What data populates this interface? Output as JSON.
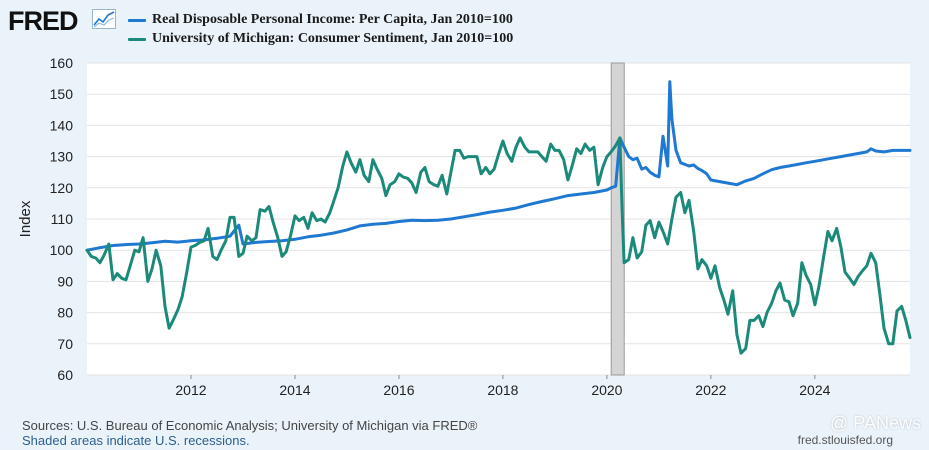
{
  "header": {
    "logo_text": "FRED",
    "logo_icon": "trend-line-icon"
  },
  "legend": [
    {
      "label": "Real Disposable Personal Income: Per Capita, Jan 2010=100",
      "color": "#1f78d1"
    },
    {
      "label": "University of Michigan: Consumer Sentiment, Jan 2010=100",
      "color": "#1b8a7a"
    }
  ],
  "footer": {
    "sources": "Sources: U.S. Bureau of Economic Analysis; University of Michigan via FRED®",
    "recession_note": "Shaded areas indicate U.S. recessions.",
    "url": "fred.stlouisfed.org",
    "watermark": "@ PANews"
  },
  "chart_data": {
    "type": "line",
    "title": "",
    "xlabel": "",
    "ylabel": "Index",
    "xlim": [
      2010.0,
      2025.83
    ],
    "ylim": [
      60,
      160
    ],
    "y_ticks": [
      60,
      70,
      80,
      90,
      100,
      110,
      120,
      130,
      140,
      150,
      160
    ],
    "x_ticks": [
      2012,
      2014,
      2016,
      2018,
      2020,
      2022,
      2024
    ],
    "x_tick_labels": [
      "2012",
      "2014",
      "2016",
      "2018",
      "2020",
      "2022",
      "2024"
    ],
    "grid": "horizontal",
    "legend_position": "top-left",
    "recessions": [
      [
        2020.083,
        2020.333
      ]
    ],
    "series": [
      {
        "name": "Real Disposable Personal Income: Per Capita, Jan 2010=100",
        "color": "#1f78d1",
        "points": [
          [
            2010.0,
            100
          ],
          [
            2010.25,
            100.8
          ],
          [
            2010.5,
            101.5
          ],
          [
            2010.75,
            101.8
          ],
          [
            2011.0,
            102
          ],
          [
            2011.25,
            102.4
          ],
          [
            2011.5,
            102.9
          ],
          [
            2011.75,
            102.6
          ],
          [
            2012.0,
            103
          ],
          [
            2012.25,
            103.3
          ],
          [
            2012.5,
            103.8
          ],
          [
            2012.75,
            104.5
          ],
          [
            2012.92,
            108
          ],
          [
            2013.0,
            102
          ],
          [
            2013.25,
            102.5
          ],
          [
            2013.5,
            102.8
          ],
          [
            2013.75,
            103
          ],
          [
            2014.0,
            103.5
          ],
          [
            2014.25,
            104.3
          ],
          [
            2014.5,
            104.8
          ],
          [
            2014.75,
            105.5
          ],
          [
            2015.0,
            106.5
          ],
          [
            2015.25,
            107.8
          ],
          [
            2015.5,
            108.3
          ],
          [
            2015.75,
            108.6
          ],
          [
            2016.0,
            109.2
          ],
          [
            2016.25,
            109.6
          ],
          [
            2016.5,
            109.5
          ],
          [
            2016.75,
            109.6
          ],
          [
            2017.0,
            110
          ],
          [
            2017.25,
            110.7
          ],
          [
            2017.5,
            111.4
          ],
          [
            2017.75,
            112.2
          ],
          [
            2018.0,
            112.8
          ],
          [
            2018.25,
            113.5
          ],
          [
            2018.5,
            114.6
          ],
          [
            2018.75,
            115.6
          ],
          [
            2019.0,
            116.5
          ],
          [
            2019.25,
            117.5
          ],
          [
            2019.5,
            118
          ],
          [
            2019.75,
            118.5
          ],
          [
            2020.0,
            119.3
          ],
          [
            2020.08,
            120
          ],
          [
            2020.17,
            120.5
          ],
          [
            2020.25,
            136
          ],
          [
            2020.33,
            133
          ],
          [
            2020.42,
            130
          ],
          [
            2020.5,
            129
          ],
          [
            2020.58,
            129.5
          ],
          [
            2020.67,
            126
          ],
          [
            2020.75,
            126.5
          ],
          [
            2020.83,
            125
          ],
          [
            2020.92,
            124
          ],
          [
            2021.0,
            123.5
          ],
          [
            2021.08,
            136.5
          ],
          [
            2021.17,
            127
          ],
          [
            2021.21,
            154
          ],
          [
            2021.25,
            142
          ],
          [
            2021.33,
            132
          ],
          [
            2021.42,
            128
          ],
          [
            2021.5,
            127.5
          ],
          [
            2021.58,
            127
          ],
          [
            2021.67,
            127.3
          ],
          [
            2021.75,
            126.2
          ],
          [
            2021.83,
            125.5
          ],
          [
            2021.92,
            124.5
          ],
          [
            2022.0,
            122.5
          ],
          [
            2022.17,
            122
          ],
          [
            2022.33,
            121.5
          ],
          [
            2022.5,
            121
          ],
          [
            2022.67,
            122.2
          ],
          [
            2022.83,
            123
          ],
          [
            2023.0,
            124.5
          ],
          [
            2023.17,
            125.8
          ],
          [
            2023.33,
            126.5
          ],
          [
            2023.5,
            127
          ],
          [
            2023.67,
            127.5
          ],
          [
            2023.83,
            128
          ],
          [
            2024.0,
            128.5
          ],
          [
            2024.17,
            129
          ],
          [
            2024.33,
            129.5
          ],
          [
            2024.5,
            130
          ],
          [
            2024.67,
            130.5
          ],
          [
            2024.83,
            131
          ],
          [
            2025.0,
            131.5
          ],
          [
            2025.08,
            132.5
          ],
          [
            2025.17,
            131.8
          ],
          [
            2025.33,
            131.5
          ],
          [
            2025.5,
            132
          ],
          [
            2025.67,
            132
          ],
          [
            2025.83,
            132
          ]
        ]
      },
      {
        "name": "University of Michigan: Consumer Sentiment, Jan 2010=100",
        "color": "#1b8a7a",
        "points": [
          [
            2010.0,
            100
          ],
          [
            2010.08,
            98
          ],
          [
            2010.17,
            97.5
          ],
          [
            2010.25,
            96
          ],
          [
            2010.33,
            98.5
          ],
          [
            2010.42,
            102
          ],
          [
            2010.5,
            90.5
          ],
          [
            2010.58,
            92.5
          ],
          [
            2010.67,
            91
          ],
          [
            2010.75,
            90.5
          ],
          [
            2010.83,
            95
          ],
          [
            2010.92,
            100
          ],
          [
            2011.0,
            99.5
          ],
          [
            2011.08,
            104
          ],
          [
            2011.17,
            90
          ],
          [
            2011.25,
            94
          ],
          [
            2011.33,
            100
          ],
          [
            2011.42,
            95
          ],
          [
            2011.5,
            82
          ],
          [
            2011.58,
            75
          ],
          [
            2011.67,
            78
          ],
          [
            2011.75,
            81
          ],
          [
            2011.83,
            85
          ],
          [
            2011.92,
            93
          ],
          [
            2012.0,
            101
          ],
          [
            2012.08,
            101.5
          ],
          [
            2012.17,
            102.5
          ],
          [
            2012.25,
            103
          ],
          [
            2012.33,
            107
          ],
          [
            2012.42,
            98
          ],
          [
            2012.5,
            97
          ],
          [
            2012.58,
            100
          ],
          [
            2012.67,
            103
          ],
          [
            2012.75,
            110.5
          ],
          [
            2012.83,
            110.5
          ],
          [
            2012.92,
            98
          ],
          [
            2013.0,
            99
          ],
          [
            2013.08,
            104.5
          ],
          [
            2013.17,
            103
          ],
          [
            2013.25,
            104
          ],
          [
            2013.33,
            113
          ],
          [
            2013.42,
            112.5
          ],
          [
            2013.5,
            114
          ],
          [
            2013.58,
            109
          ],
          [
            2013.67,
            104
          ],
          [
            2013.75,
            98
          ],
          [
            2013.83,
            99.5
          ],
          [
            2013.92,
            105
          ],
          [
            2014.0,
            111
          ],
          [
            2014.08,
            109.5
          ],
          [
            2014.17,
            110.5
          ],
          [
            2014.25,
            107
          ],
          [
            2014.33,
            112
          ],
          [
            2014.42,
            109.5
          ],
          [
            2014.5,
            110
          ],
          [
            2014.58,
            109
          ],
          [
            2014.67,
            112
          ],
          [
            2014.75,
            116
          ],
          [
            2014.83,
            120
          ],
          [
            2014.92,
            127
          ],
          [
            2015.0,
            131.5
          ],
          [
            2015.08,
            128
          ],
          [
            2015.17,
            125
          ],
          [
            2015.25,
            129
          ],
          [
            2015.33,
            124
          ],
          [
            2015.42,
            122
          ],
          [
            2015.5,
            129
          ],
          [
            2015.58,
            126
          ],
          [
            2015.67,
            123
          ],
          [
            2015.75,
            117.5
          ],
          [
            2015.83,
            121
          ],
          [
            2015.92,
            122
          ],
          [
            2016.0,
            124.5
          ],
          [
            2016.08,
            123.5
          ],
          [
            2016.17,
            123
          ],
          [
            2016.25,
            121.5
          ],
          [
            2016.33,
            118.5
          ],
          [
            2016.42,
            125
          ],
          [
            2016.5,
            126.5
          ],
          [
            2016.58,
            122
          ],
          [
            2016.67,
            121
          ],
          [
            2016.75,
            120.5
          ],
          [
            2016.83,
            124
          ],
          [
            2016.92,
            118
          ],
          [
            2017.0,
            125
          ],
          [
            2017.08,
            132
          ],
          [
            2017.17,
            132
          ],
          [
            2017.25,
            129.5
          ],
          [
            2017.33,
            130
          ],
          [
            2017.42,
            130
          ],
          [
            2017.5,
            130
          ],
          [
            2017.58,
            124.5
          ],
          [
            2017.67,
            126.5
          ],
          [
            2017.75,
            124.5
          ],
          [
            2017.83,
            126
          ],
          [
            2017.92,
            131
          ],
          [
            2018.0,
            135
          ],
          [
            2018.08,
            131
          ],
          [
            2018.17,
            128.5
          ],
          [
            2018.25,
            133
          ],
          [
            2018.33,
            136
          ],
          [
            2018.42,
            133
          ],
          [
            2018.5,
            131.5
          ],
          [
            2018.58,
            131.5
          ],
          [
            2018.67,
            131.5
          ],
          [
            2018.75,
            130
          ],
          [
            2018.83,
            128.5
          ],
          [
            2018.92,
            134
          ],
          [
            2019.0,
            132
          ],
          [
            2019.08,
            132
          ],
          [
            2019.17,
            129
          ],
          [
            2019.25,
            122.5
          ],
          [
            2019.33,
            127
          ],
          [
            2019.42,
            132.5
          ],
          [
            2019.5,
            131
          ],
          [
            2019.58,
            134
          ],
          [
            2019.67,
            132
          ],
          [
            2019.75,
            133
          ],
          [
            2019.83,
            121
          ],
          [
            2019.92,
            126.5
          ],
          [
            2020.0,
            130
          ],
          [
            2020.08,
            131.5
          ],
          [
            2020.17,
            133.5
          ],
          [
            2020.25,
            136
          ],
          [
            2020.29,
            114
          ],
          [
            2020.33,
            96
          ],
          [
            2020.42,
            97
          ],
          [
            2020.5,
            104
          ],
          [
            2020.58,
            97.5
          ],
          [
            2020.67,
            99.5
          ],
          [
            2020.75,
            108
          ],
          [
            2020.83,
            109.5
          ],
          [
            2020.92,
            104
          ],
          [
            2021.0,
            109
          ],
          [
            2021.08,
            106
          ],
          [
            2021.17,
            102
          ],
          [
            2021.25,
            110
          ],
          [
            2021.33,
            117
          ],
          [
            2021.42,
            118.5
          ],
          [
            2021.5,
            112
          ],
          [
            2021.58,
            116
          ],
          [
            2021.67,
            106
          ],
          [
            2021.75,
            94
          ],
          [
            2021.83,
            97
          ],
          [
            2021.92,
            95
          ],
          [
            2022.0,
            91
          ],
          [
            2022.08,
            95
          ],
          [
            2022.17,
            88
          ],
          [
            2022.25,
            84
          ],
          [
            2022.33,
            79.5
          ],
          [
            2022.42,
            87
          ],
          [
            2022.5,
            73
          ],
          [
            2022.58,
            67
          ],
          [
            2022.67,
            68.5
          ],
          [
            2022.75,
            77.5
          ],
          [
            2022.83,
            77.5
          ],
          [
            2022.92,
            79
          ],
          [
            2023.0,
            75.5
          ],
          [
            2023.08,
            80
          ],
          [
            2023.17,
            83
          ],
          [
            2023.25,
            87
          ],
          [
            2023.33,
            89.5
          ],
          [
            2023.42,
            84
          ],
          [
            2023.5,
            83.5
          ],
          [
            2023.58,
            79
          ],
          [
            2023.67,
            83
          ],
          [
            2023.75,
            96
          ],
          [
            2023.83,
            92
          ],
          [
            2023.92,
            89
          ],
          [
            2024.0,
            82.5
          ],
          [
            2024.08,
            88.5
          ],
          [
            2024.17,
            98
          ],
          [
            2024.25,
            106
          ],
          [
            2024.33,
            103
          ],
          [
            2024.42,
            107
          ],
          [
            2024.5,
            101
          ],
          [
            2024.58,
            93
          ],
          [
            2024.67,
            91
          ],
          [
            2024.75,
            89
          ],
          [
            2024.83,
            91.5
          ],
          [
            2024.92,
            93.5
          ],
          [
            2025.0,
            95
          ],
          [
            2025.08,
            99
          ],
          [
            2025.17,
            96
          ],
          [
            2025.25,
            86
          ],
          [
            2025.33,
            75
          ],
          [
            2025.42,
            70
          ],
          [
            2025.5,
            70
          ],
          [
            2025.58,
            80.5
          ],
          [
            2025.67,
            82
          ],
          [
            2025.75,
            77.5
          ],
          [
            2025.83,
            72
          ]
        ]
      }
    ]
  }
}
